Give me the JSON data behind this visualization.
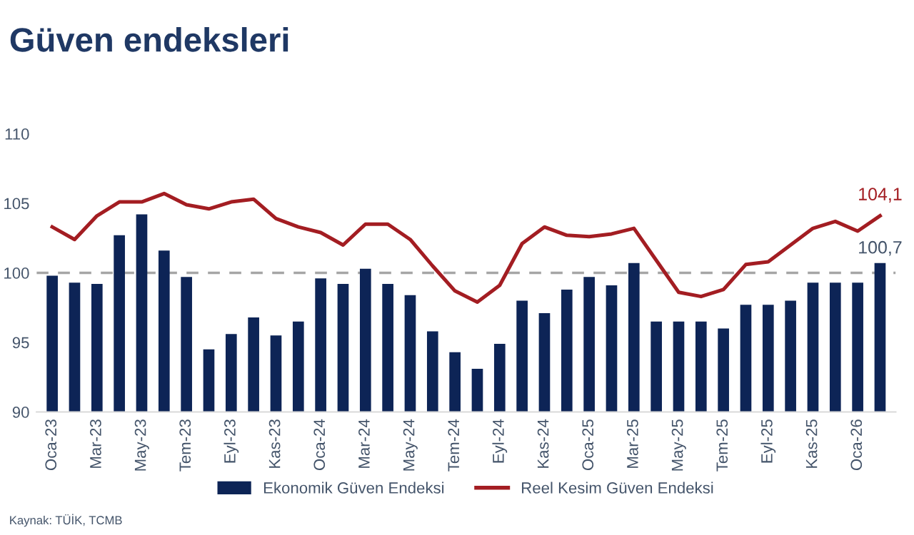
{
  "chart_data": {
    "type": "bar",
    "title": "Güven endeksleri",
    "categories": [
      "Oca-23",
      null,
      "Mar-23",
      null,
      "May-23",
      null,
      "Tem-23",
      null,
      "Eyl-23",
      null,
      "Kas-23",
      null,
      "Oca-24",
      null,
      "Mar-24",
      null,
      "May-24",
      null,
      "Tem-24",
      null,
      "Eyl-24",
      null,
      "Kas-24",
      null,
      "Oca-25",
      null,
      "Mar-25",
      null,
      "May-25",
      null,
      "Tem-25",
      null,
      "Eyl-25",
      null,
      "Kas-25",
      null,
      "Oca-26",
      null
    ],
    "series": [
      {
        "name": "Ekonomik Güven Endeksi",
        "color": "#0d2456",
        "values": [
          99.8,
          99.3,
          99.2,
          102.7,
          104.2,
          101.6,
          99.7,
          94.5,
          95.6,
          96.8,
          95.5,
          96.5,
          99.6,
          99.2,
          100.3,
          99.2,
          98.4,
          95.8,
          94.3,
          93.1,
          94.9,
          98.0,
          97.1,
          98.8,
          99.7,
          99.1,
          100.7,
          96.5,
          96.5,
          96.5,
          96.0,
          97.7,
          97.7,
          98.0,
          99.3,
          99.3,
          99.3,
          100.7
        ],
        "value_labels": [
          null,
          null,
          null,
          null,
          null,
          null,
          null,
          null,
          null,
          null,
          null,
          null,
          null,
          null,
          null,
          null,
          null,
          null,
          null,
          null,
          null,
          null,
          null,
          null,
          null,
          null,
          null,
          null,
          null,
          null,
          null,
          null,
          null,
          null,
          null,
          null,
          null,
          "100,7"
        ]
      },
      {
        "name": "Reel Kesim Güven Endeksi",
        "type": "line",
        "color": "#a31d22",
        "values": [
          103.3,
          102.4,
          104.1,
          105.1,
          105.1,
          105.7,
          104.9,
          104.6,
          105.1,
          105.3,
          103.9,
          103.3,
          102.9,
          102.0,
          103.5,
          103.5,
          102.4,
          100.5,
          98.7,
          97.9,
          99.1,
          102.1,
          103.3,
          102.7,
          102.6,
          102.8,
          103.2,
          100.9,
          98.6,
          98.3,
          98.8,
          100.6,
          100.8,
          102.0,
          103.2,
          103.7,
          103.0,
          104.1
        ],
        "value_labels": [
          null,
          null,
          null,
          null,
          null,
          null,
          null,
          null,
          null,
          null,
          null,
          null,
          null,
          null,
          null,
          null,
          null,
          null,
          null,
          null,
          null,
          null,
          null,
          null,
          null,
          null,
          null,
          null,
          null,
          null,
          null,
          null,
          null,
          null,
          null,
          null,
          null,
          "104,1"
        ]
      }
    ],
    "ylim": [
      90,
      110
    ],
    "yticks": [
      90,
      95,
      100,
      105,
      110
    ],
    "ref_lines": [
      {
        "axis": "y",
        "value": 100,
        "color": "#a6a6a6",
        "line_style": "dashed"
      }
    ],
    "grid": false,
    "legend": "bottom",
    "marker": "none",
    "line_style": "solid",
    "annotations": [
      "Kaynak: TÜİK, TCMB"
    ]
  }
}
